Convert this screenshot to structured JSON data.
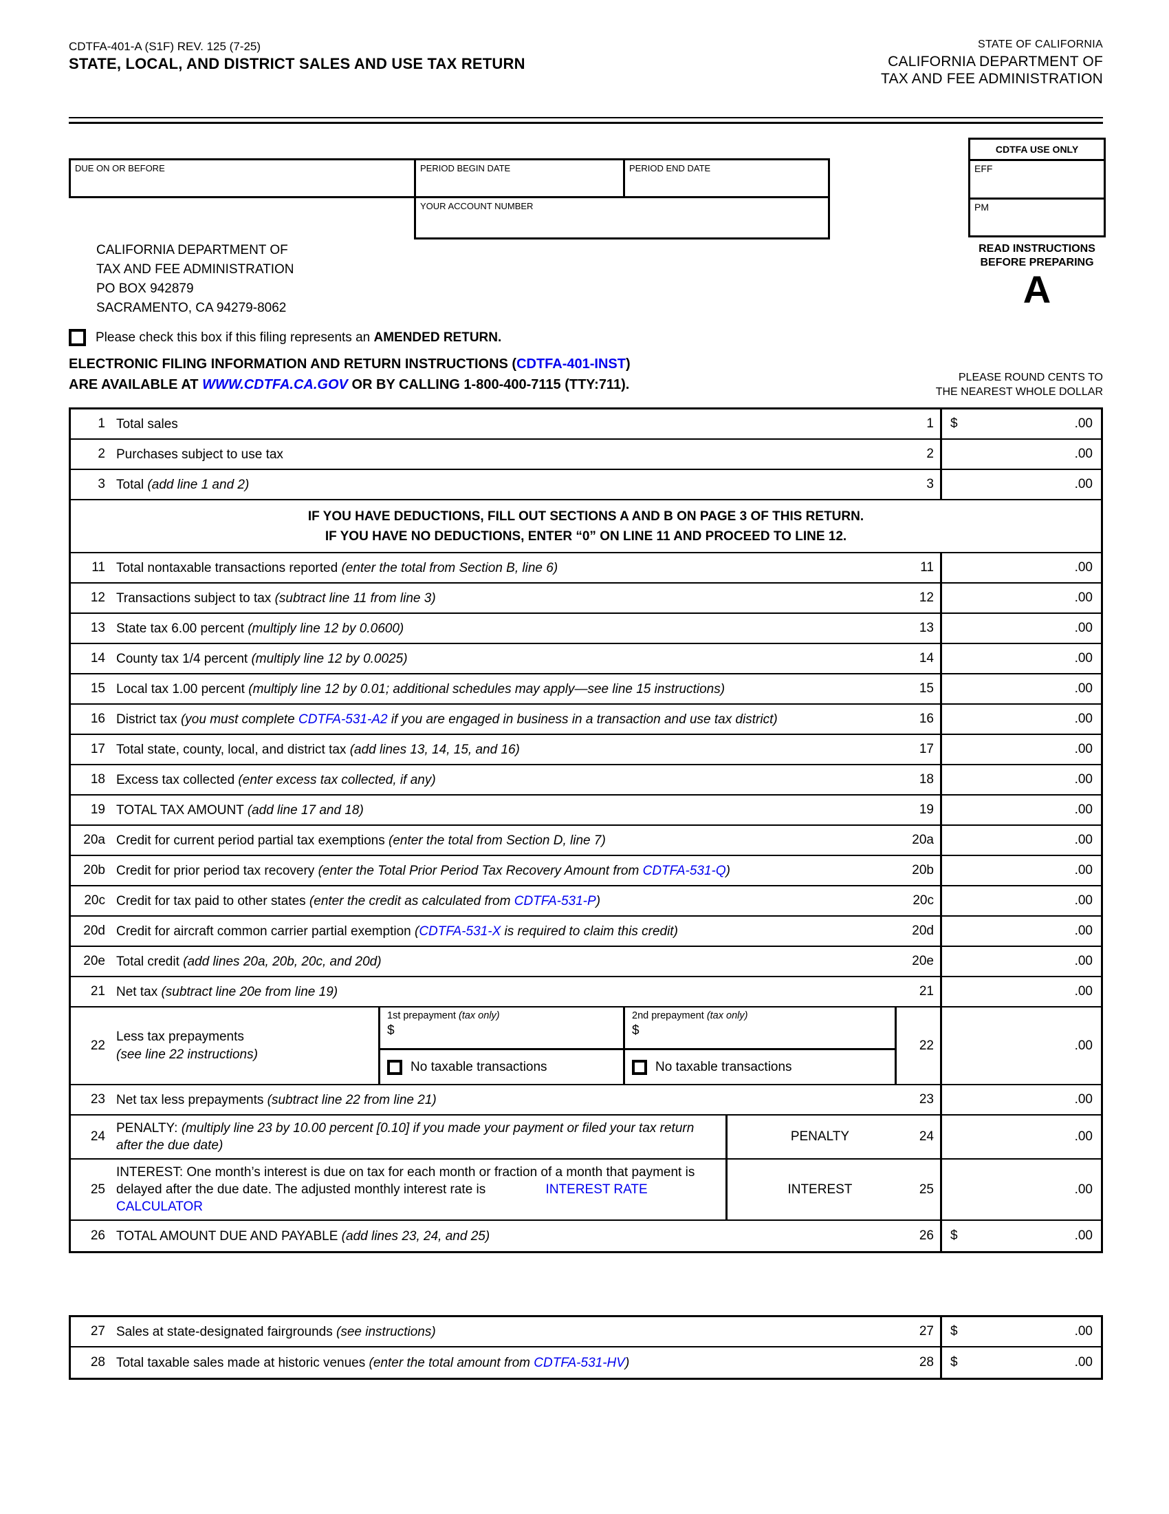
{
  "colors": {
    "link_blue": "#0000EE",
    "ink": "#000000"
  },
  "header": {
    "form_number": "CDTFA-401-A (S1F) REV. 125 (7-25)",
    "title": "STATE, LOCAL, AND DISTRICT SALES AND USE TAX RETURN",
    "state_line": "STATE OF CALIFORNIA",
    "dept_line1": "CALIFORNIA DEPARTMENT OF",
    "dept_line2": "TAX AND FEE ADMINISTRATION"
  },
  "info": {
    "due_label": "DUE ON OR BEFORE",
    "period_begin_label": "PERIOD BEGIN DATE",
    "period_end_label": "PERIOD END DATE",
    "account_label": "YOUR ACCOUNT NUMBER",
    "use_only_label": "CDTFA USE ONLY",
    "eff_label": "EFF",
    "pm_label": "PM",
    "read_line1": "READ INSTRUCTIONS",
    "read_line2": "BEFORE PREPARING",
    "schedule_letter": "A"
  },
  "mailing": [
    "CALIFORNIA DEPARTMENT OF",
    "TAX AND FEE ADMINISTRATION",
    "PO BOX 942879",
    "SACRAMENTO, CA 94279-8062"
  ],
  "amended": {
    "pre": "Please check this box if this filing represents an ",
    "bold": "AMENDED RETURN."
  },
  "efile": {
    "l1a": "ELECTRONIC FILING INFORMATION AND RETURN INSTRUCTIONS (",
    "l1link": "CDTFA-401-INST",
    "l1b": ")",
    "l2a": "ARE AVAILABLE AT ",
    "l2link": "WWW.CDTFA.CA.GOV",
    "l2b": " OR BY CALLING 1-800-400-7115 (TTY:711)."
  },
  "round_note": [
    "PLEASE ROUND CENTS TO",
    "THE NEAREST WHOLE DOLLAR"
  ],
  "table1": {
    "rows": [
      {
        "n": "1",
        "parts": [
          {
            "t": "Total sales"
          }
        ],
        "d": "$",
        "a": ".00"
      },
      {
        "n": "2",
        "parts": [
          {
            "t": "Purchases subject to use tax"
          }
        ],
        "a": ".00"
      },
      {
        "n": "3",
        "parts": [
          {
            "t": "Total "
          },
          {
            "t": "(add line 1 and 2)",
            "i": 1
          }
        ],
        "a": ".00"
      },
      {
        "type": "notice",
        "lines": [
          "IF YOU HAVE DEDUCTIONS, FILL OUT SECTIONS A AND B ON PAGE 3 OF THIS RETURN.",
          "IF YOU HAVE NO DEDUCTIONS, ENTER “0” ON LINE 11 AND PROCEED TO LINE 12."
        ]
      },
      {
        "n": "11",
        "parts": [
          {
            "t": "Total nontaxable transactions reported "
          },
          {
            "t": "(enter the total from Section B, line 6)",
            "i": 1
          }
        ],
        "a": ".00"
      },
      {
        "n": "12",
        "parts": [
          {
            "t": "Transactions subject to tax "
          },
          {
            "t": "(subtract line 11 from line 3)",
            "i": 1
          }
        ],
        "a": ".00"
      },
      {
        "n": "13",
        "parts": [
          {
            "t": "State tax 6.00 percent "
          },
          {
            "t": "(multiply line 12 by 0.0600)",
            "i": 1
          }
        ],
        "a": ".00"
      },
      {
        "n": "14",
        "parts": [
          {
            "t": "County tax 1/4 percent "
          },
          {
            "t": "(multiply line 12 by 0.0025)",
            "i": 1
          }
        ],
        "a": ".00"
      },
      {
        "n": "15",
        "parts": [
          {
            "t": "Local tax 1.00 percent "
          },
          {
            "t": "(multiply line 12 by 0.01; additional schedules may apply—see line 15 instructions)",
            "i": 1
          }
        ],
        "a": ".00"
      },
      {
        "n": "16",
        "parts": [
          {
            "t": "District tax "
          },
          {
            "t": "(you must complete ",
            "i": 1
          },
          {
            "t": "CDTFA-531-A2",
            "i": 1,
            "link": 1
          },
          {
            "t": " if you are engaged in business in a transaction and use tax district)",
            "i": 1
          }
        ],
        "a": ".00"
      },
      {
        "n": "17",
        "parts": [
          {
            "t": "Total state, county, local, and district tax "
          },
          {
            "t": "(add lines 13, 14, 15, and 16)",
            "i": 1
          }
        ],
        "a": ".00"
      },
      {
        "n": "18",
        "parts": [
          {
            "t": "Excess tax collected "
          },
          {
            "t": "(enter excess tax collected, if any)",
            "i": 1
          }
        ],
        "a": ".00"
      },
      {
        "n": "19",
        "parts": [
          {
            "t": "TOTAL TAX AMOUNT "
          },
          {
            "t": "(add line 17 and 18)",
            "i": 1
          }
        ],
        "a": ".00"
      },
      {
        "n": "20a",
        "parts": [
          {
            "t": "Credit for current period partial tax exemptions "
          },
          {
            "t": "(enter the total from Section D, line 7)",
            "i": 1
          }
        ],
        "a": ".00"
      },
      {
        "n": "20b",
        "parts": [
          {
            "t": "Credit for prior period tax recovery "
          },
          {
            "t": "(enter the Total Prior Period Tax Recovery Amount from ",
            "i": 1
          },
          {
            "t": "CDTFA-531-Q",
            "i": 1,
            "link": 1
          },
          {
            "t": ")",
            "i": 1
          }
        ],
        "a": ".00"
      },
      {
        "n": "20c",
        "parts": [
          {
            "t": "Credit for tax paid to other states "
          },
          {
            "t": "(enter the credit as calculated from ",
            "i": 1
          },
          {
            "t": "CDTFA-531-P",
            "i": 1,
            "link": 1
          },
          {
            "t": ")",
            "i": 1
          }
        ],
        "a": ".00"
      },
      {
        "n": "20d",
        "parts": [
          {
            "t": "Credit for aircraft common carrier partial exemption "
          },
          {
            "t": "(",
            "i": 1
          },
          {
            "t": "CDTFA-531-X",
            "i": 1,
            "link": 1
          },
          {
            "t": " is required to claim this credit)",
            "i": 1
          }
        ],
        "a": ".00"
      },
      {
        "n": "20e",
        "parts": [
          {
            "t": "Total credit "
          },
          {
            "t": "(add lines 20a, 20b, 20c, and 20d)",
            "i": 1
          }
        ],
        "a": ".00"
      },
      {
        "n": "21",
        "parts": [
          {
            "t": "Net tax "
          },
          {
            "t": "(subtract line 20e from line 19)",
            "i": 1
          }
        ],
        "a": ".00"
      },
      {
        "type": "prepay",
        "n": "22",
        "desc1": "Less tax prepayments",
        "desc2": "(see line 22 instructions)",
        "p1": "1st prepayment ",
        "p1i": "(tax only)",
        "p2": "2nd prepayment ",
        "p2i": "(tax only)",
        "dollar": "$",
        "cb_label": "No taxable transactions",
        "a": ".00"
      },
      {
        "n": "23",
        "parts": [
          {
            "t": "Net tax less prepayments "
          },
          {
            "t": "(subtract line 22 from line 21)",
            "i": 1
          }
        ],
        "a": ".00"
      },
      {
        "type": "labeled",
        "n": "24",
        "label": "PENALTY",
        "parts": [
          {
            "t": "PENALTY: "
          },
          {
            "t": "(multiply line 23 by 10.00 percent [0.10] if you made your payment or filed your tax return after the due date)",
            "i": 1
          }
        ],
        "a": ".00"
      },
      {
        "type": "labeled",
        "n": "25",
        "label": "INTEREST",
        "parts": [
          {
            "t": "INTEREST: One month’s interest is due on tax for each month or fraction of a month that payment is delayed after the due date. The adjusted monthly interest rate is "
          },
          {
            "t": "INTEREST RATE CALCULATOR",
            "link": 1,
            "gap": 1
          }
        ],
        "a": ".00"
      },
      {
        "n": "26",
        "parts": [
          {
            "t": "TOTAL AMOUNT DUE AND PAYABLE "
          },
          {
            "t": "(add lines 23, 24, and 25)",
            "i": 1
          }
        ],
        "d": "$",
        "a": ".00"
      }
    ]
  },
  "table2": {
    "rows": [
      {
        "n": "27",
        "parts": [
          {
            "t": "Sales at state-designated fairgrounds "
          },
          {
            "t": "(see instructions)",
            "i": 1
          }
        ],
        "d": "$",
        "a": ".00"
      },
      {
        "n": "28",
        "parts": [
          {
            "t": "Total taxable sales made at historic venues "
          },
          {
            "t": "(enter the total amount from ",
            "i": 1
          },
          {
            "t": "CDTFA-531-HV",
            "i": 1,
            "link": 1
          },
          {
            "t": ")",
            "i": 1
          }
        ],
        "d": "$",
        "a": ".00"
      }
    ]
  }
}
